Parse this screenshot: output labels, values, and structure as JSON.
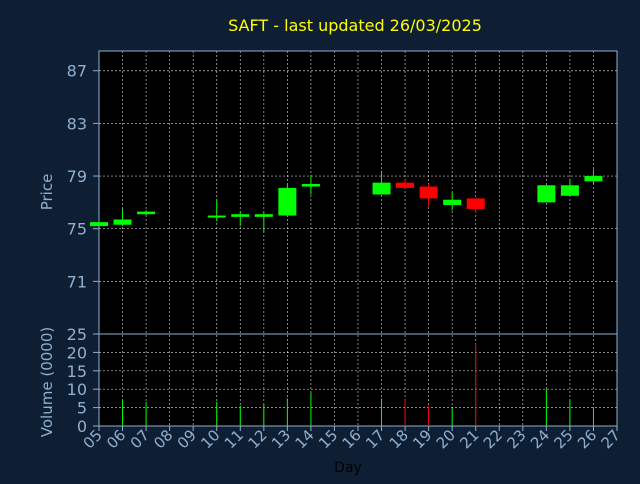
{
  "colors": {
    "background": "#0f1f33",
    "plot_background": "#000000",
    "title": "#ffff00",
    "axis_text": "#8fb0d0",
    "axis_label": "#c0c8d0",
    "grid": "#ffffff",
    "up": "#00ff00",
    "down": "#ff0000"
  },
  "chart_data": {
    "type": "candlestick",
    "title": "SAFT - last updated 26/03/2025",
    "xlabel": "Day",
    "price_ylabel": "Price",
    "volume_ylabel": "Volume (0000)",
    "x_ticks": [
      "05",
      "06",
      "07",
      "08",
      "09",
      "10",
      "11",
      "12",
      "13",
      "14",
      "15",
      "16",
      "17",
      "18",
      "19",
      "20",
      "21",
      "22",
      "23",
      "24",
      "25",
      "26",
      "27"
    ],
    "price_ylim": [
      67.0,
      88.5
    ],
    "price_yticks": [
      71,
      75,
      79,
      83,
      87
    ],
    "volume_ylim": [
      0,
      25
    ],
    "volume_yticks": [
      0,
      5,
      10,
      15,
      20,
      25
    ],
    "grid": true,
    "candles": [
      {
        "day": "05",
        "open": 75.2,
        "high": 75.6,
        "low": 75.2,
        "close": 75.5,
        "volume": 0
      },
      {
        "day": "06",
        "open": 75.3,
        "high": 76.5,
        "low": 75.2,
        "close": 75.7,
        "volume": 7
      },
      {
        "day": "07",
        "open": 76.1,
        "high": 76.4,
        "low": 76.0,
        "close": 76.3,
        "volume": 6.5
      },
      {
        "day": "10",
        "open": 75.9,
        "high": 77.2,
        "low": 75.6,
        "close": 76.0,
        "volume": 6.5
      },
      {
        "day": "11",
        "open": 75.9,
        "high": 76.3,
        "low": 75.2,
        "close": 76.1,
        "volume": 5.5
      },
      {
        "day": "12",
        "open": 75.9,
        "high": 76.3,
        "low": 74.7,
        "close": 76.1,
        "volume": 6
      },
      {
        "day": "13",
        "open": 76.0,
        "high": 78.4,
        "low": 76.0,
        "close": 78.1,
        "volume": 7.5
      },
      {
        "day": "14",
        "open": 78.2,
        "high": 79.1,
        "low": 77.6,
        "close": 78.4,
        "volume": 9
      },
      {
        "day": "17",
        "open": 77.6,
        "high": 79.4,
        "low": 77.6,
        "close": 78.5,
        "volume": 7.5
      },
      {
        "day": "18",
        "open": 78.5,
        "high": 78.7,
        "low": 78.0,
        "close": 78.1,
        "volume": 7.5
      },
      {
        "day": "19",
        "open": 78.2,
        "high": 78.4,
        "low": 76.7,
        "close": 77.3,
        "volume": 5.5
      },
      {
        "day": "20",
        "open": 76.8,
        "high": 77.8,
        "low": 76.4,
        "close": 77.2,
        "volume": 5
      },
      {
        "day": "21",
        "open": 77.3,
        "high": 77.3,
        "low": 76.2,
        "close": 76.5,
        "volume": 22.5
      },
      {
        "day": "24",
        "open": 77.0,
        "high": 78.3,
        "low": 77.0,
        "close": 78.3,
        "volume": 10
      },
      {
        "day": "25",
        "open": 77.5,
        "high": 78.8,
        "low": 77.5,
        "close": 78.3,
        "volume": 7
      },
      {
        "day": "26",
        "open": 78.6,
        "high": 79.5,
        "low": 78.4,
        "close": 79.0,
        "volume": 5
      }
    ]
  }
}
